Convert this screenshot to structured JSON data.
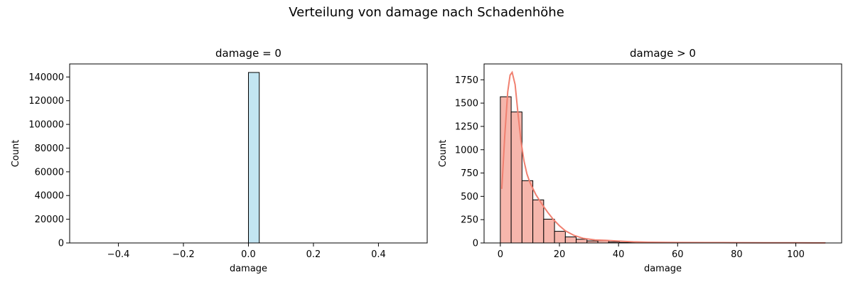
{
  "figure": {
    "suptitle": "Verteilung von damage nach Schadenhöhe"
  },
  "chart_data": [
    {
      "type": "bar",
      "title": "damage = 0",
      "xlabel": "damage",
      "ylabel": "Count",
      "xlim": [
        -0.55,
        0.55
      ],
      "ylim": [
        0,
        151000
      ],
      "xticks": [
        -0.4,
        -0.2,
        0.0,
        0.2,
        0.4
      ],
      "xtick_labels": [
        "−0.4",
        "−0.2",
        "0.0",
        "0.2",
        "0.4"
      ],
      "yticks": [
        0,
        20000,
        40000,
        60000,
        80000,
        100000,
        120000,
        140000
      ],
      "ytick_labels": [
        "0",
        "20000",
        "40000",
        "60000",
        "80000",
        "100000",
        "120000",
        "140000"
      ],
      "bins": [
        {
          "x0": -0.5,
          "x1": -0.4667,
          "count": 0
        },
        {
          "x0": -0.4667,
          "x1": -0.4333,
          "count": 0
        },
        {
          "x0": -0.4333,
          "x1": -0.4,
          "count": 0
        },
        {
          "x0": -0.4,
          "x1": -0.3667,
          "count": 0
        },
        {
          "x0": -0.3667,
          "x1": -0.3333,
          "count": 0
        },
        {
          "x0": -0.3333,
          "x1": -0.3,
          "count": 0
        },
        {
          "x0": -0.3,
          "x1": -0.2667,
          "count": 0
        },
        {
          "x0": -0.2667,
          "x1": -0.2333,
          "count": 0
        },
        {
          "x0": -0.2333,
          "x1": -0.2,
          "count": 0
        },
        {
          "x0": -0.2,
          "x1": -0.1667,
          "count": 0
        },
        {
          "x0": -0.1667,
          "x1": -0.1333,
          "count": 0
        },
        {
          "x0": -0.1333,
          "x1": -0.1,
          "count": 0
        },
        {
          "x0": -0.1,
          "x1": -0.0667,
          "count": 0
        },
        {
          "x0": -0.0667,
          "x1": -0.0333,
          "count": 0
        },
        {
          "x0": -0.0333,
          "x1": 0.0,
          "count": 0
        },
        {
          "x0": 0.0,
          "x1": 0.0333,
          "count": 143800
        },
        {
          "x0": 0.0333,
          "x1": 0.0667,
          "count": 0
        },
        {
          "x0": 0.0667,
          "x1": 0.1,
          "count": 0
        },
        {
          "x0": 0.1,
          "x1": 0.1333,
          "count": 0
        },
        {
          "x0": 0.1333,
          "x1": 0.1667,
          "count": 0
        },
        {
          "x0": 0.1667,
          "x1": 0.2,
          "count": 0
        },
        {
          "x0": 0.2,
          "x1": 0.2333,
          "count": 0
        },
        {
          "x0": 0.2333,
          "x1": 0.2667,
          "count": 0
        },
        {
          "x0": 0.2667,
          "x1": 0.3,
          "count": 0
        },
        {
          "x0": 0.3,
          "x1": 0.3333,
          "count": 0
        },
        {
          "x0": 0.3333,
          "x1": 0.3667,
          "count": 0
        },
        {
          "x0": 0.3667,
          "x1": 0.4,
          "count": 0
        },
        {
          "x0": 0.4,
          "x1": 0.4333,
          "count": 0
        },
        {
          "x0": 0.4333,
          "x1": 0.4667,
          "count": 0
        },
        {
          "x0": 0.4667,
          "x1": 0.5,
          "count": 0
        }
      ],
      "bar_color": "#c3e5f2",
      "edge_color": "#000000"
    },
    {
      "type": "bar",
      "title": "damage > 0",
      "xlabel": "damage",
      "ylabel": "Count",
      "xlim": [
        -5.5,
        115.5
      ],
      "ylim": [
        0,
        1920
      ],
      "xticks": [
        0,
        20,
        40,
        60,
        80,
        100
      ],
      "xtick_labels": [
        "0",
        "20",
        "40",
        "60",
        "80",
        "100"
      ],
      "yticks": [
        0,
        250,
        500,
        750,
        1000,
        1250,
        1500,
        1750
      ],
      "ytick_labels": [
        "0",
        "250",
        "500",
        "750",
        "1000",
        "1250",
        "1500",
        "1750"
      ],
      "bins": [
        {
          "x0": 0.0,
          "x1": 3.667,
          "count": 1568
        },
        {
          "x0": 3.667,
          "x1": 7.333,
          "count": 1405
        },
        {
          "x0": 7.333,
          "x1": 11.0,
          "count": 668
        },
        {
          "x0": 11.0,
          "x1": 14.667,
          "count": 462
        },
        {
          "x0": 14.667,
          "x1": 18.333,
          "count": 255
        },
        {
          "x0": 18.333,
          "x1": 22.0,
          "count": 125
        },
        {
          "x0": 22.0,
          "x1": 25.667,
          "count": 65
        },
        {
          "x0": 25.667,
          "x1": 29.333,
          "count": 40
        },
        {
          "x0": 29.333,
          "x1": 33.0,
          "count": 22
        },
        {
          "x0": 33.0,
          "x1": 36.667,
          "count": 25
        },
        {
          "x0": 36.667,
          "x1": 40.333,
          "count": 10
        },
        {
          "x0": 40.333,
          "x1": 44.0,
          "count": 5
        },
        {
          "x0": 44.0,
          "x1": 47.667,
          "count": 4
        },
        {
          "x0": 47.667,
          "x1": 51.333,
          "count": 3
        },
        {
          "x0": 51.333,
          "x1": 55.0,
          "count": 2
        },
        {
          "x0": 55.0,
          "x1": 58.667,
          "count": 2
        },
        {
          "x0": 58.667,
          "x1": 62.333,
          "count": 3
        },
        {
          "x0": 62.333,
          "x1": 66.0,
          "count": 2
        },
        {
          "x0": 66.0,
          "x1": 69.667,
          "count": 1
        },
        {
          "x0": 69.667,
          "x1": 73.333,
          "count": 1
        },
        {
          "x0": 73.333,
          "x1": 77.0,
          "count": 1
        },
        {
          "x0": 77.0,
          "x1": 80.667,
          "count": 1
        },
        {
          "x0": 80.667,
          "x1": 84.333,
          "count": 0
        },
        {
          "x0": 84.333,
          "x1": 88.0,
          "count": 0
        },
        {
          "x0": 88.0,
          "x1": 91.667,
          "count": 1
        },
        {
          "x0": 91.667,
          "x1": 95.333,
          "count": 0
        },
        {
          "x0": 95.333,
          "x1": 99.0,
          "count": 0
        },
        {
          "x0": 99.0,
          "x1": 102.667,
          "count": 0
        },
        {
          "x0": 102.667,
          "x1": 106.333,
          "count": 0
        },
        {
          "x0": 106.333,
          "x1": 110.0,
          "count": 1
        }
      ],
      "kde": {
        "x": [
          0.5,
          1.5,
          2.5,
          3.3,
          4.0,
          5.0,
          6.0,
          7.0,
          8.0,
          9.0,
          10,
          12,
          14,
          16,
          18,
          20,
          22,
          25,
          28,
          32,
          36,
          40,
          45,
          50,
          60,
          70,
          80,
          90,
          100,
          110
        ],
        "y": [
          580,
          1150,
          1620,
          1800,
          1830,
          1700,
          1380,
          1090,
          880,
          740,
          650,
          520,
          420,
          330,
          250,
          185,
          130,
          80,
          50,
          32,
          28,
          20,
          12,
          8,
          5,
          4,
          3,
          2,
          2,
          1
        ]
      },
      "bar_color": "#f6b6ac",
      "edge_color": "#000000",
      "kde_color": "#f08070"
    }
  ]
}
